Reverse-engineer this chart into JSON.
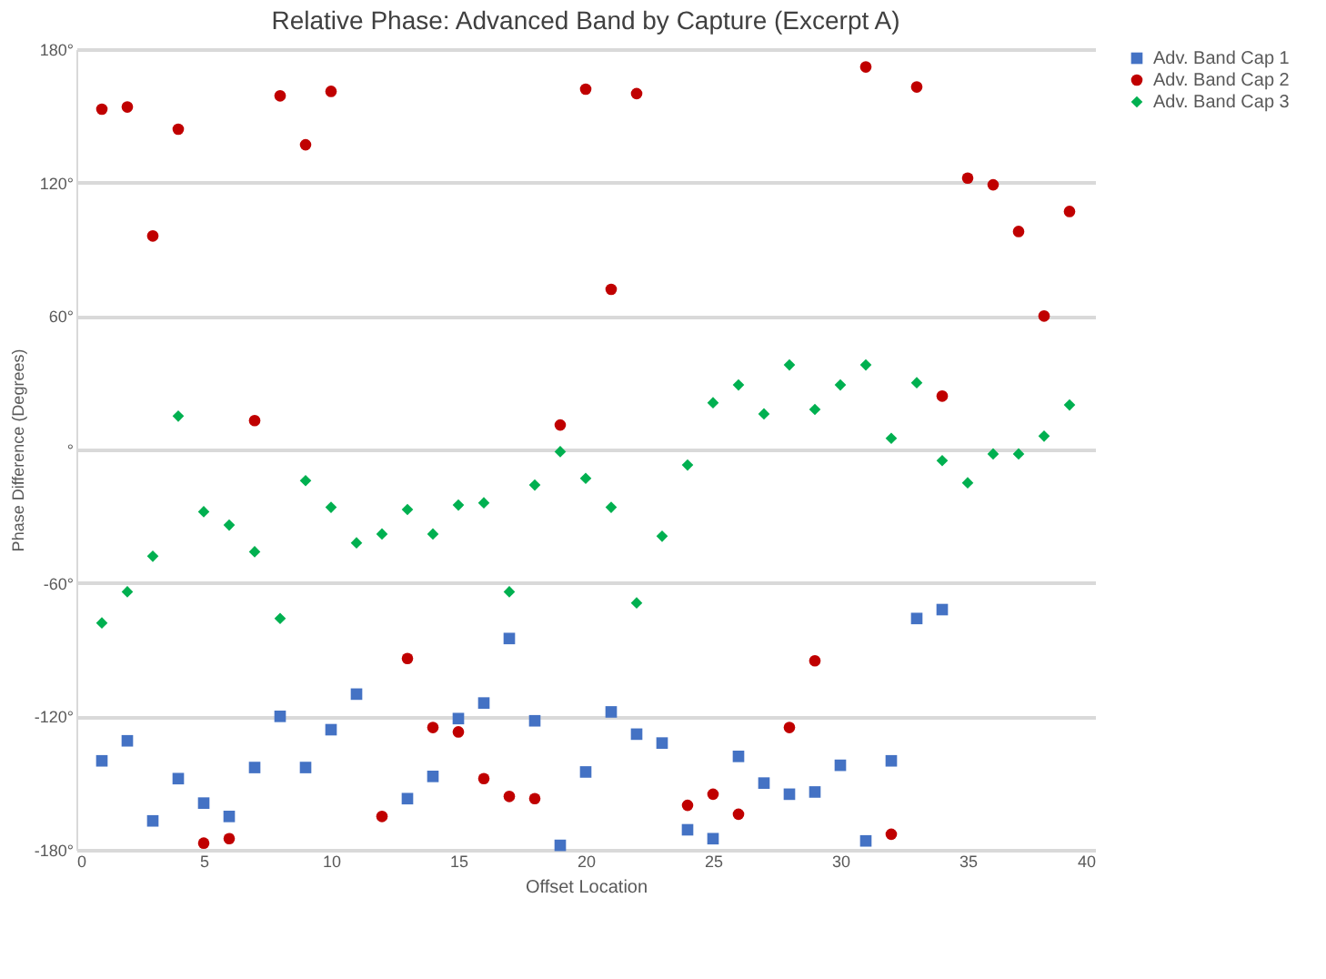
{
  "chart_data": {
    "type": "scatter",
    "title": "Relative Phase: Advanced Band by Capture (Excerpt A)",
    "xlabel": "Offset Location",
    "ylabel": "Phase Difference (Degrees)",
    "x": [
      1,
      2,
      3,
      4,
      5,
      6,
      7,
      8,
      9,
      10,
      11,
      12,
      13,
      14,
      15,
      16,
      17,
      18,
      19,
      20,
      21,
      22,
      23,
      24,
      25,
      26,
      27,
      28,
      29,
      30,
      31,
      32,
      33,
      34,
      35,
      36,
      37,
      38,
      39
    ],
    "series": [
      {
        "name": "Adv. Band Cap 1",
        "color": "#4472c4",
        "marker": "square",
        "values": [
          -140,
          -131,
          -167,
          -148,
          -159,
          -165,
          -143,
          -120,
          -143,
          -126,
          -110,
          null,
          -157,
          -147,
          -121,
          -114,
          -85,
          -122,
          -178,
          -145,
          -118,
          -128,
          -132,
          -171,
          -175,
          -138,
          -150,
          -155,
          -154,
          -142,
          -176,
          -140,
          -76,
          -72,
          null,
          null,
          null,
          null,
          null
        ]
      },
      {
        "name": "Adv. Band Cap 2",
        "color": "#c00000",
        "marker": "circle",
        "values": [
          153,
          154,
          96,
          144,
          -177,
          -175,
          13,
          159,
          137,
          161,
          null,
          -165,
          -94,
          -125,
          -127,
          -148,
          -156,
          -157,
          11,
          162,
          72,
          160,
          null,
          -160,
          -155,
          -164,
          null,
          -125,
          -95,
          null,
          172,
          -173,
          163,
          24,
          122,
          119,
          98,
          60,
          107
        ]
      },
      {
        "name": "Adv. Band Cap 3",
        "color": "#00b050",
        "marker": "diamond",
        "values": [
          -78,
          -64,
          -48,
          15,
          -28,
          -34,
          -46,
          -76,
          -14,
          -26,
          -42,
          -38,
          -27,
          -38,
          -25,
          -24,
          -64,
          -16,
          -1,
          -13,
          -26,
          -69,
          -39,
          -7,
          21,
          29,
          16,
          38,
          18,
          29,
          38,
          5,
          30,
          -5,
          -15,
          -2,
          -2,
          6,
          20
        ]
      }
    ],
    "xlim": [
      0,
      40
    ],
    "xticks": [
      0,
      5,
      10,
      15,
      20,
      25,
      30,
      35,
      40
    ],
    "ylim": [
      -180,
      180
    ],
    "yticks": [
      {
        "value": -180,
        "label": "-180°"
      },
      {
        "value": -120,
        "label": "-120°"
      },
      {
        "value": -60,
        "label": "-60°"
      },
      {
        "value": 0,
        "label": "°"
      },
      {
        "value": 60,
        "label": "60°"
      },
      {
        "value": 120,
        "label": "120°"
      },
      {
        "value": 180,
        "label": "180°"
      }
    ],
    "grid": "y",
    "legend": "top right"
  }
}
